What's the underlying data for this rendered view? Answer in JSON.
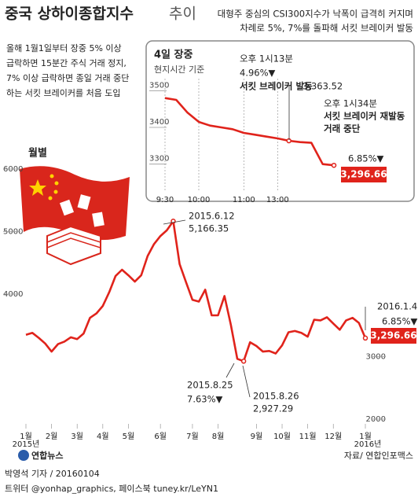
{
  "header": {
    "title": "중국 상하이종합지수",
    "title_suffix": "추이",
    "description": [
      "대형주 중심의 CSI300지수가 낙폭이 급격히 커지며",
      "차례로 5%, 7%를 돌파해 서킷 브레이커 발동"
    ]
  },
  "note": [
    "올해 1월1일부터 장중 5% 이상",
    "급락하면 15분간 주식 거래 정지,",
    "7% 이상 급락하면 종일 거래 중단",
    "하는 서킷 브레이커를 처음 도입"
  ],
  "chart_data": [
    {
      "type": "line",
      "subtitle": "월별",
      "color": "#e0231b",
      "categories": [
        "1월",
        null,
        null,
        null,
        "2월",
        null,
        null,
        null,
        "3월",
        null,
        null,
        null,
        "4월",
        null,
        null,
        null,
        "5월",
        null,
        null,
        null,
        null,
        "6월",
        null,
        null,
        null,
        null,
        "7월",
        null,
        null,
        null,
        "8월",
        null,
        null,
        null,
        null,
        null,
        "9월",
        null,
        null,
        null,
        "10월",
        null,
        null,
        null,
        "11월",
        null,
        null,
        null,
        "12월",
        null,
        null,
        null,
        null,
        "1월"
      ],
      "x_year_labels": [
        "2015년",
        "2016년"
      ],
      "values": [
        3350,
        3380,
        3300,
        3210,
        3080,
        3200,
        3240,
        3310,
        3280,
        3370,
        3620,
        3690,
        3810,
        4030,
        4290,
        4390,
        4300,
        4200,
        4300,
        4610,
        4800,
        4930,
        5020,
        5166.35,
        4480,
        4190,
        3910,
        3880,
        4070,
        3660,
        3660,
        3970,
        3510,
        2964.97,
        2927.29,
        3230,
        3170,
        3080,
        3090,
        3050,
        3180,
        3390,
        3410,
        3380,
        3320,
        3590,
        3580,
        3630,
        3530,
        3430,
        3580,
        3620,
        3540,
        3296.66
      ],
      "value_labels": [
        null,
        null,
        null,
        null,
        null,
        null,
        null,
        null,
        null,
        null,
        null,
        null,
        null,
        null,
        null,
        null,
        null,
        null,
        null,
        null,
        null,
        null,
        null,
        "5,166.35",
        null,
        null,
        null,
        null,
        null,
        null,
        null,
        null,
        null,
        null,
        "2,927.29",
        null,
        null,
        null,
        null,
        null,
        null,
        null,
        null,
        null,
        null,
        null,
        null,
        null,
        null,
        null,
        null,
        null,
        null,
        "3,296.66"
      ],
      "annotations": [
        "2015.6.12",
        "2015.8.25",
        "7.63%▼",
        "2015.8.26",
        "2016.1.4",
        "6.85%▼"
      ],
      "ylim": [
        2000,
        6000
      ],
      "yticks": [
        2000,
        3000,
        4000,
        5000,
        6000
      ]
    },
    {
      "type": "line",
      "title": "4일 장중",
      "subtitle": "현지시간 기준",
      "color": "#e0231b",
      "categories": [
        "9:30",
        null,
        null,
        "10:00",
        null,
        null,
        null,
        "11:00",
        null,
        null,
        "13:00",
        null,
        null,
        null,
        null,
        null
      ],
      "values": [
        3480,
        3475,
        3440,
        3415,
        3405,
        3400,
        3395,
        3385,
        3380,
        3375,
        3370,
        3363.52,
        3360,
        3358,
        3300,
        3296.66
      ],
      "value_labels": [
        null,
        null,
        null,
        null,
        null,
        null,
        null,
        null,
        null,
        null,
        null,
        "3,363.52",
        null,
        null,
        null,
        "3,296.66"
      ],
      "annotations": [
        "오후 1시13분",
        "4.96%▼",
        "서킷 브레이커 발동",
        "오후 1시34분",
        "서킷 브레이커 재발동",
        "거래 중단",
        "6.85%▼"
      ],
      "ylim": [
        3250,
        3550
      ],
      "yticks": [
        3300,
        3400,
        3500
      ]
    }
  ],
  "footer": {
    "source": "자료/ 연합인포맥스",
    "byline": "박영석 기자 / 20160104",
    "social": "트위터 @yonhap_graphics, 페이스북 tuney.kr/LeYN1",
    "logo": "연합뉴스"
  }
}
